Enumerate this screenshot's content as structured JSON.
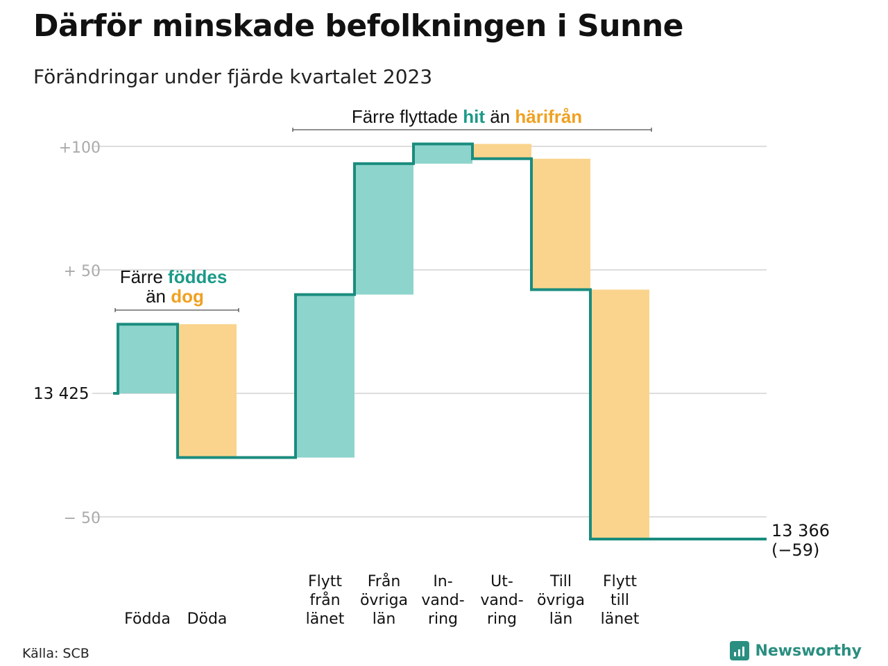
{
  "title": "Därför minskade befolkningen i Sunne",
  "subtitle": "Förändringar under fjärde kvartalet 2023",
  "source": "Källa: SCB",
  "brand": {
    "name": "Newsworthy",
    "icon": "newsworthy-logo-icon"
  },
  "colors": {
    "positive_fill": "#8dd4cc",
    "negative_fill": "#fad48c",
    "line": "#1a8c7e",
    "hit_text": "#1a9a88",
    "harifran_text": "#f0a020",
    "grid": "#dddddd",
    "tick_text": "#aaaaaa"
  },
  "annotations": {
    "births_deaths": {
      "prefix": "Färre",
      "highlight1": "föddes",
      "middle": "än",
      "highlight2": "dog"
    },
    "migration": {
      "prefix": "Färre flyttade",
      "highlight1": "hit",
      "middle": "än",
      "highlight2": "härifrån"
    }
  },
  "chart_data": {
    "type": "waterfall",
    "start_value": 13425,
    "start_label": "13  425",
    "end_value": 13366,
    "end_label": "13 366",
    "change_label": "(−59)",
    "y_ticks": [
      {
        "value": 100,
        "label": "+100"
      },
      {
        "value": 50,
        "label": "+  50"
      },
      {
        "value": 0,
        "label": ""
      },
      {
        "value": -50,
        "label": "−  50"
      }
    ],
    "ylim": [
      -60,
      105
    ],
    "steps": [
      {
        "category": "Födda",
        "label_lines": [
          "Födda"
        ],
        "change": 28
      },
      {
        "category": "Döda",
        "label_lines": [
          "Döda"
        ],
        "change": -54
      },
      {
        "category": "Flytt från länet",
        "label_lines": [
          "Flytt",
          "från",
          "länet"
        ],
        "change": 66
      },
      {
        "category": "Från övriga län",
        "label_lines": [
          "Från",
          "övriga",
          "län"
        ],
        "change": 53
      },
      {
        "category": "Invandring",
        "label_lines": [
          "In-",
          "vand-",
          "ring"
        ],
        "change": 8
      },
      {
        "category": "Utvandring",
        "label_lines": [
          "Ut-",
          "vand-",
          "ring"
        ],
        "change": -6
      },
      {
        "category": "Till övriga län",
        "label_lines": [
          "Till",
          "övriga",
          "län"
        ],
        "change": -53
      },
      {
        "category": "Flytt till länet",
        "label_lines": [
          "Flytt",
          "till",
          "länet"
        ],
        "change": -101
      }
    ]
  }
}
